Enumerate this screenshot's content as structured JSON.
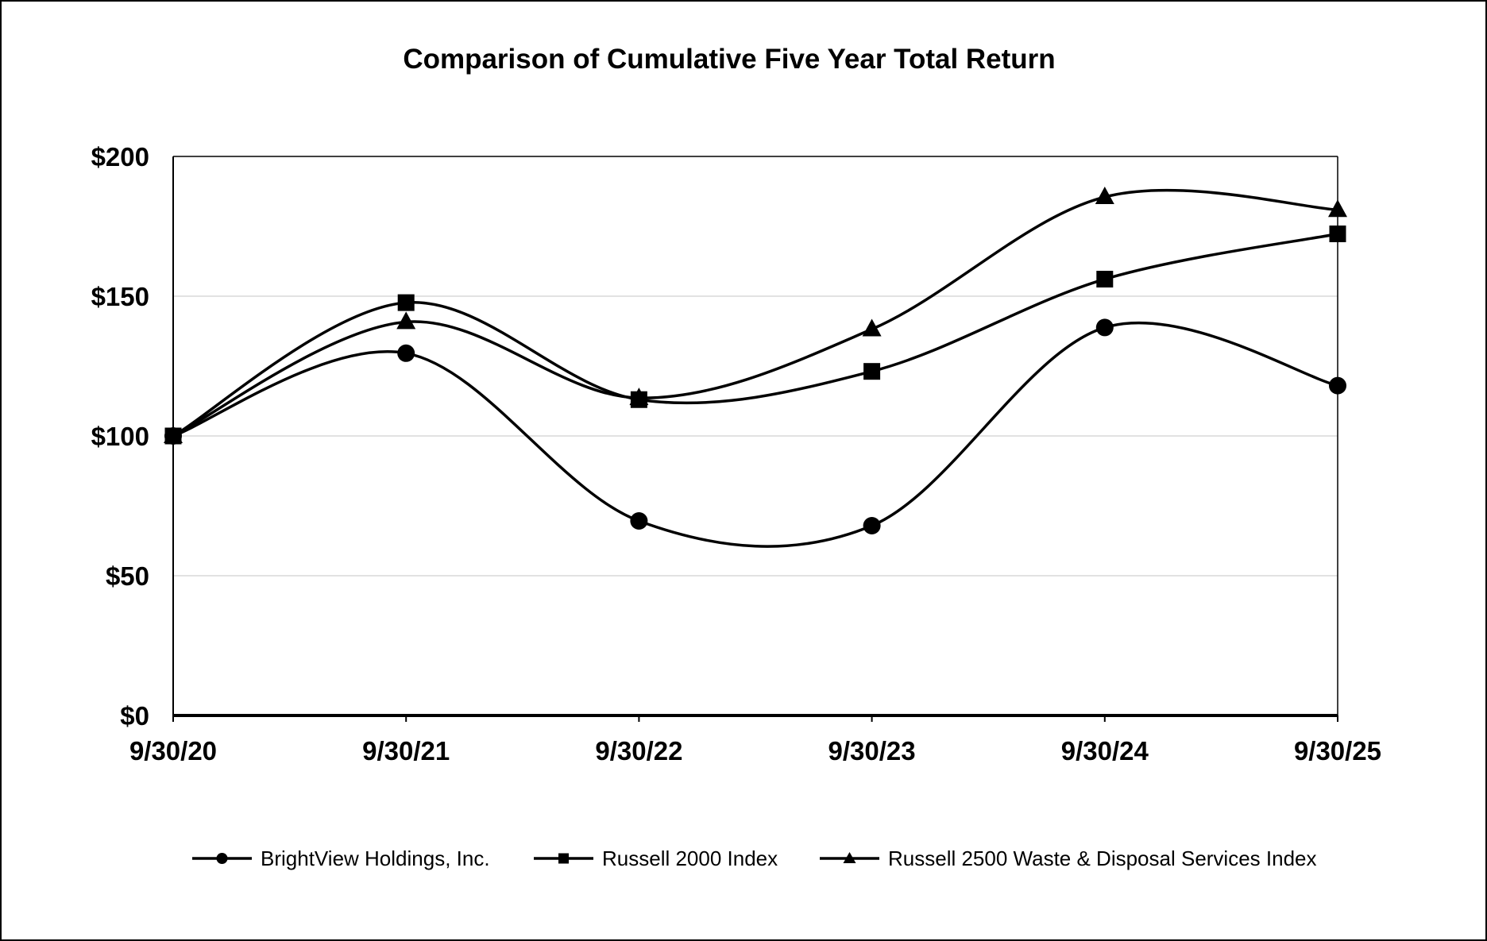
{
  "chart_data": {
    "type": "line",
    "title": "Comparison of Cumulative Five Year Total Return",
    "x": [
      "9/30/20",
      "9/30/21",
      "9/30/22",
      "9/30/23",
      "9/30/24",
      "9/30/25"
    ],
    "yticks": [
      "$0",
      "$50",
      "$100",
      "$150",
      "$200"
    ],
    "ylim": [
      0,
      200
    ],
    "grid": true,
    "legend_position": "bottom",
    "series": [
      {
        "name": "BrightView Holdings, Inc.",
        "marker": "circle",
        "values": [
          100,
          129.6,
          69.6,
          67.9,
          138.8,
          118.0
        ]
      },
      {
        "name": "Russell 2000 Index",
        "marker": "square",
        "values": [
          100,
          147.7,
          113.0,
          123.1,
          156.1,
          172.3
        ]
      },
      {
        "name": "Russell 2500 Waste & Disposal Services Index",
        "marker": "triangle",
        "values": [
          100,
          140.8,
          113.6,
          138.2,
          185.5,
          180.9
        ]
      }
    ],
    "colors": {
      "line": "#000000",
      "grid": "#d9d9d9",
      "frame": "#000000",
      "background": "#ffffff"
    }
  }
}
